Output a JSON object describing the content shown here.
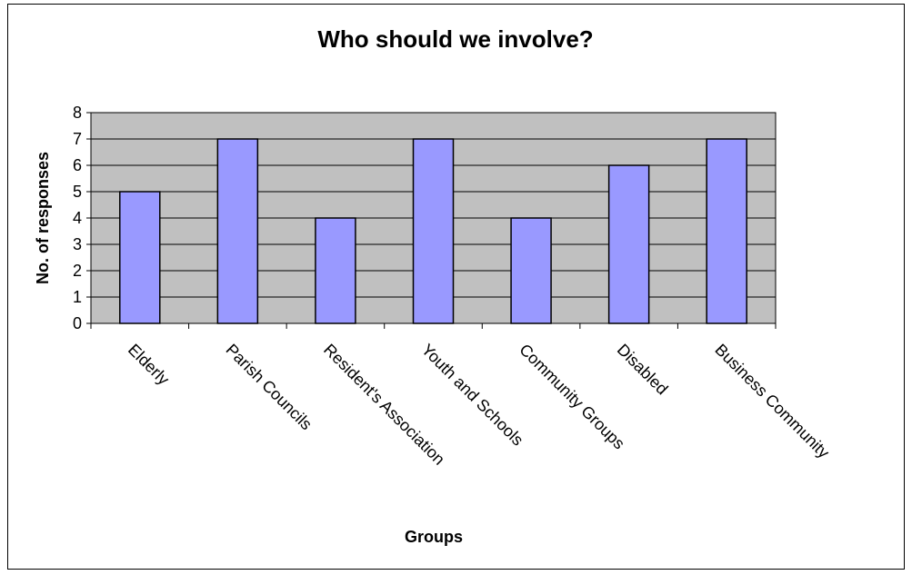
{
  "chart_data": {
    "type": "bar",
    "title": "Who should we involve?",
    "xlabel": "Groups",
    "ylabel": "No. of responses",
    "categories": [
      "Elderly",
      "Parish Councils",
      "Resident's Association",
      "Youth and Schools",
      "Community Groups",
      "Disabled",
      "Business Community"
    ],
    "values": [
      5,
      7,
      4,
      7,
      4,
      6,
      7
    ],
    "ylim": [
      0,
      8
    ],
    "yticks": [
      "0",
      "1",
      "2",
      "3",
      "4",
      "5",
      "6",
      "7",
      "8"
    ],
    "grid": true,
    "legend": "none",
    "colors": {
      "bar": "#9999ff",
      "plot_background": "#c0c0c0",
      "gridline": "#000000",
      "border": "#000000"
    }
  }
}
